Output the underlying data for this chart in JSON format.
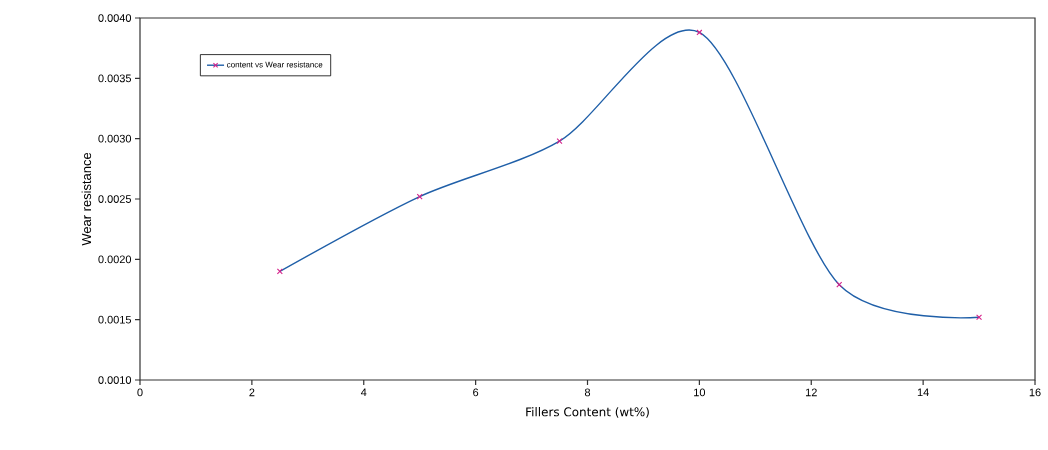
{
  "chart_data": {
    "type": "line",
    "xlabel": "Fillers Content     (wt%)",
    "ylabel": "Wear resistance",
    "x": [
      2.5,
      5,
      7.5,
      10,
      12.5,
      15
    ],
    "series": [
      {
        "name": "content  vs Wear resistance",
        "color": "#1f5fa8",
        "colors": [
          "#d6218a",
          "#d6218a",
          "#d6218a",
          "#d6218a",
          "#d6218a",
          "#d6218a"
        ],
        "values": [
          0.0019,
          0.00252,
          0.00298,
          0.00388,
          0.00179,
          0.00152
        ]
      }
    ],
    "xlim": [
      0,
      16
    ],
    "xticks": [
      0,
      2,
      4,
      6,
      8,
      10,
      12,
      14,
      16
    ],
    "ylim": [
      0.001,
      0.004
    ],
    "yticks": [
      {
        "value": 0.001,
        "label": "0.0010"
      },
      {
        "value": 0.0015,
        "label": "0.0015"
      },
      {
        "value": 0.002,
        "label": "0.0020"
      },
      {
        "value": 0.0025,
        "label": "0.0025"
      },
      {
        "value": 0.003,
        "label": "0.0030"
      },
      {
        "value": 0.0035,
        "label": "0.0035"
      },
      {
        "value": 0.004,
        "label": "0.0040"
      }
    ],
    "legend": "top left",
    "marker": "cross",
    "grid": false,
    "line_style": "solid"
  }
}
